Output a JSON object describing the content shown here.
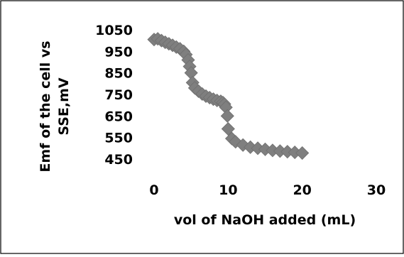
{
  "chart_data": {
    "type": "scatter",
    "title": "",
    "xlabel": "vol of NaOH added (mL)",
    "ylabel_lines": [
      "Emf of the cell vs",
      "SSE,mV"
    ],
    "xlim": [
      0,
      30
    ],
    "ylim": [
      450,
      1050
    ],
    "x_ticks": [
      0,
      10,
      20,
      30
    ],
    "y_ticks": [
      450,
      550,
      650,
      750,
      850,
      950,
      1050
    ],
    "x_tick_labels": [
      "0",
      "10",
      "20",
      "30"
    ],
    "y_tick_labels": [
      "450",
      "550",
      "650",
      "750",
      "850",
      "950",
      "1050"
    ],
    "grid": false,
    "legend": "none",
    "marker": "diamond",
    "marker_color": "#7f7f7f",
    "series": [
      {
        "x": [
          0,
          0.5,
          1,
          1.5,
          2,
          2.5,
          3,
          3.5,
          4,
          4.3,
          4.6,
          4.8,
          5,
          5.2,
          5.5,
          6,
          6.5,
          7,
          7.5,
          8,
          8.5,
          9,
          9.3,
          9.5,
          9.7,
          9.9,
          10,
          10.5,
          11,
          12,
          13,
          14,
          15,
          16,
          17,
          18,
          19,
          20
        ],
        "y": [
          1005,
          1008,
          1000,
          992,
          985,
          978,
          970,
          962,
          950,
          935,
          910,
          880,
          850,
          805,
          780,
          765,
          752,
          742,
          735,
          728,
          722,
          718,
          712,
          705,
          690,
          650,
          590,
          545,
          530,
          515,
          505,
          500,
          495,
          490,
          487,
          484,
          481,
          478
        ]
      }
    ]
  }
}
